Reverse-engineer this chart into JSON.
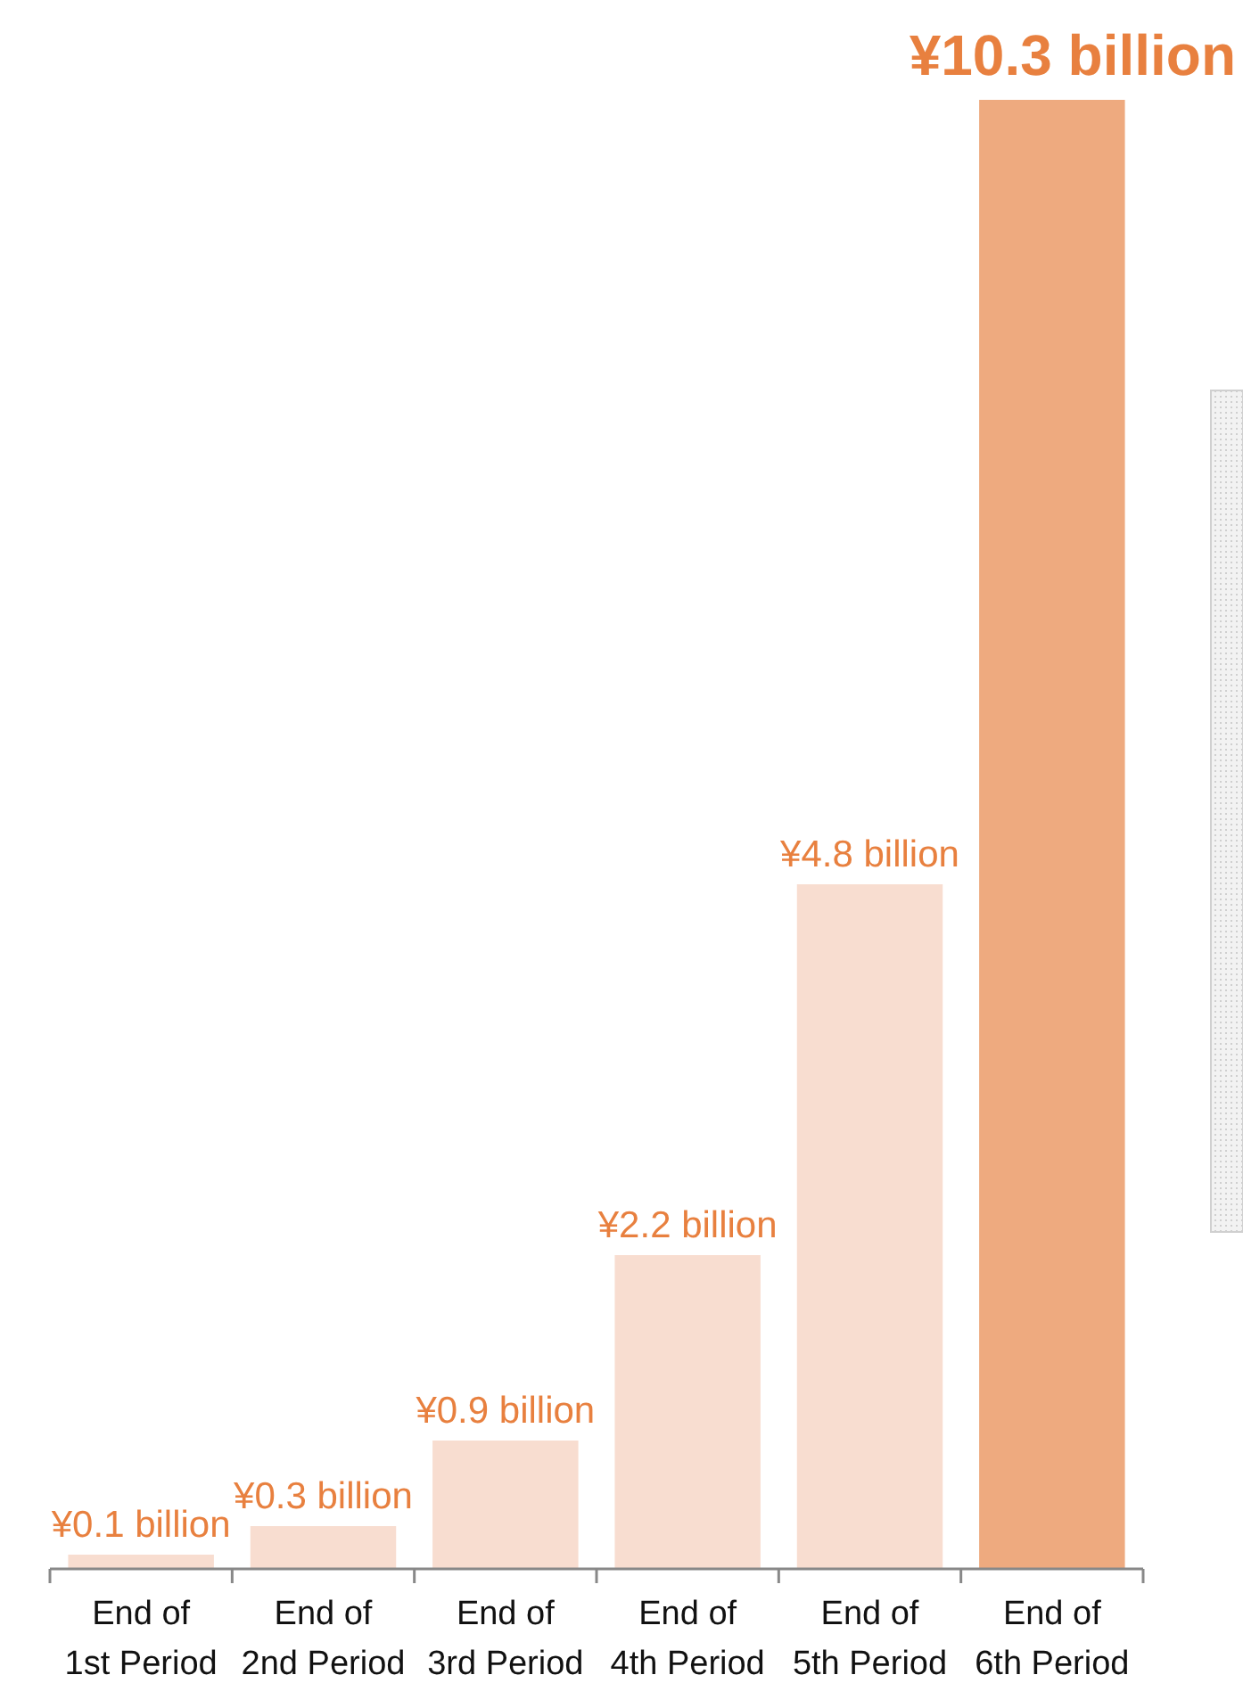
{
  "chart_data": {
    "type": "bar",
    "categories": [
      "End of\n1st Period",
      "End of\n2nd Period",
      "End of\n3rd Period",
      "End of\n4th Period",
      "End of\n5th Period",
      "End of\n6th Period"
    ],
    "values": [
      0.1,
      0.3,
      0.9,
      2.2,
      4.8,
      10.3
    ],
    "colors": [
      "#f8ddd0",
      "#f8ddd0",
      "#f8ddd0",
      "#f8ddd0",
      "#f8ddd0",
      "#eeaa7f"
    ],
    "value_labels": [
      "¥0.1 billion",
      "¥0.3 billion",
      "¥0.9 billion",
      "¥2.2 billion",
      "¥4.8 billion",
      "¥10.3 billion"
    ]
  }
}
